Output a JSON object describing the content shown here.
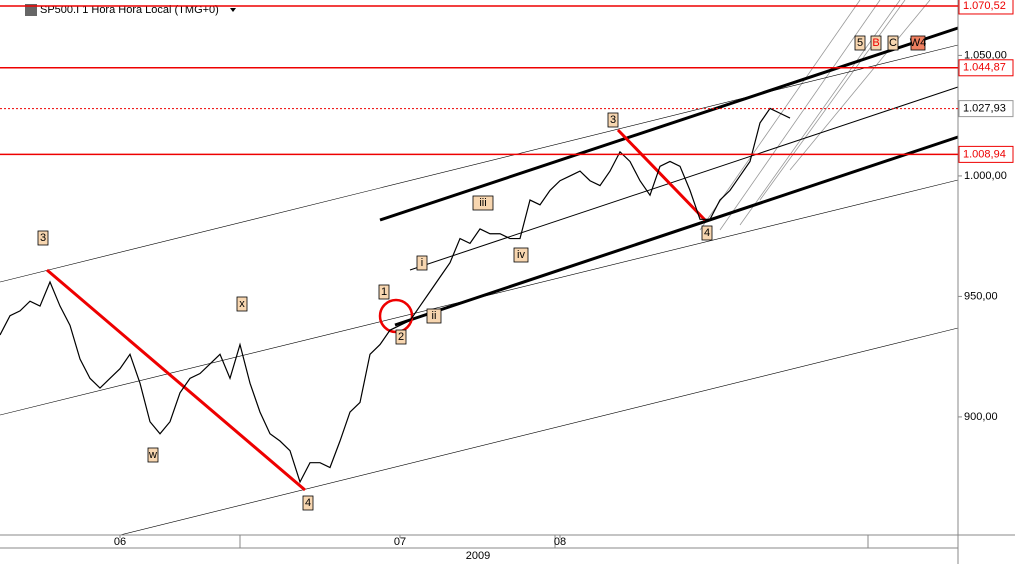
{
  "chart_data": {
    "type": "line",
    "title": "SP500.I 1 Hora Hora Local (TMG+0)",
    "x_label": "2009",
    "values": [
      934,
      942,
      944,
      948,
      946,
      956,
      946,
      938,
      924,
      916,
      912,
      916,
      920,
      926,
      914,
      898,
      893,
      898,
      910,
      916,
      918,
      922,
      926,
      916,
      930,
      914,
      902,
      893,
      890,
      886,
      873,
      881,
      881,
      879,
      890,
      902,
      906,
      926,
      930,
      936,
      938,
      940,
      946,
      952,
      958,
      964,
      974,
      972,
      978,
      976,
      976,
      974,
      974,
      990,
      988,
      994,
      998,
      1000,
      1002,
      998,
      996,
      1002,
      1010,
      1006,
      998,
      992,
      1004,
      1006,
      1004,
      994,
      982,
      982,
      990,
      994,
      1000,
      1006,
      1022,
      1028,
      1026,
      1024
    ],
    "color": "#000000",
    "xticks": [
      {
        "value": 12,
        "label": "06"
      },
      {
        "value": 40,
        "label": "07"
      },
      {
        "value": 56,
        "label": "08"
      }
    ],
    "ylim": [
      851,
      1073
    ],
    "yticks": [
      {
        "value": 900,
        "label": "900,00"
      },
      {
        "value": 950,
        "label": "950,00"
      },
      {
        "value": 1000,
        "label": "1.000,00"
      },
      {
        "value": 1050,
        "label": "1.050,00"
      }
    ],
    "levels": [
      {
        "value": 1070.52,
        "label": "1.070,52"
      },
      {
        "value": 1044.87,
        "label": "1.044,87"
      },
      {
        "value": 1008.94,
        "label": "1.008,94"
      }
    ],
    "last_price": {
      "value": 1027.93,
      "label": "1.027,93"
    },
    "annotations": [
      "3",
      "x",
      "w",
      "4",
      "1",
      "2",
      "i",
      "ii",
      "iii",
      "iv",
      "3",
      "4",
      "5",
      "B",
      "C",
      "W4"
    ]
  }
}
